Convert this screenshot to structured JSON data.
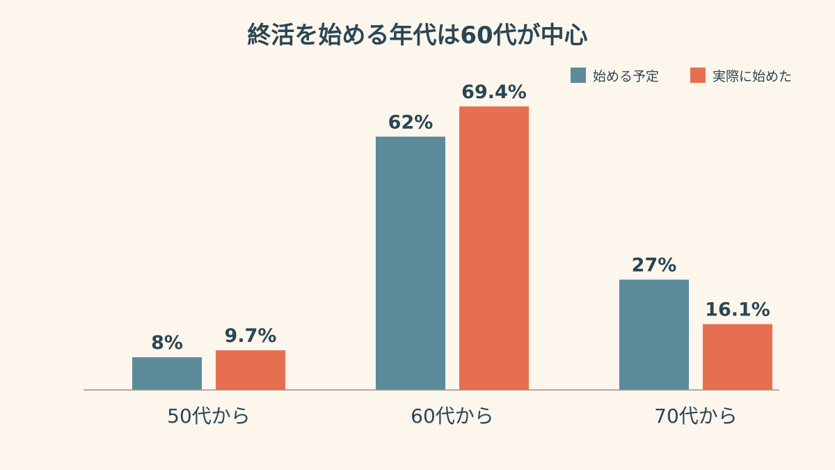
{
  "chart_data": {
    "type": "bar",
    "title": "終活を始める年代は60代が中心",
    "categories": [
      "50代から",
      "60代から",
      "70代から"
    ],
    "series": [
      {
        "name": "始める予定",
        "values": [
          8,
          62,
          27
        ],
        "labels": [
          "8%",
          "62%",
          "27%"
        ],
        "color": "#5b8a9b"
      },
      {
        "name": "実際に始めた",
        "values": [
          9.7,
          69.4,
          16.1
        ],
        "labels": [
          "9.7%",
          "69.4%",
          "16.1%"
        ],
        "color": "#e76f51"
      }
    ],
    "ylim": [
      0,
      75
    ],
    "legend_position": "top-right",
    "grid": false
  }
}
